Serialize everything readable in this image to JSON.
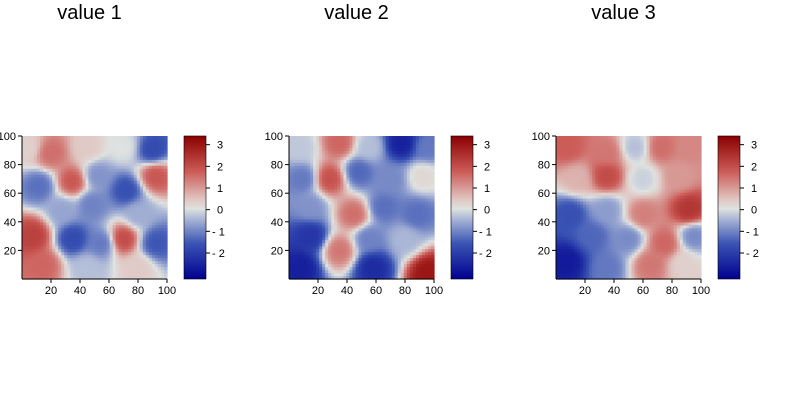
{
  "chart_data": [
    {
      "type": "heatmap",
      "title": "value 1",
      "xlabel": "",
      "ylabel": "",
      "xlim": [
        0,
        100
      ],
      "ylim": [
        0,
        100
      ],
      "x_ticks": [
        "20",
        "40",
        "60",
        "80",
        "100"
      ],
      "y_ticks": [
        "20",
        "40",
        "60",
        "80",
        "100"
      ],
      "colorbar": {
        "range": [
          -3.2,
          3.4
        ],
        "ticks": [
          "3",
          "2",
          "1",
          "0",
          "- 1",
          "- 2"
        ]
      },
      "grid": false,
      "hotspots": [
        {
          "x": 4,
          "y": 92,
          "value": 0.3
        },
        {
          "x": 20,
          "y": 88,
          "value": 1.5
        },
        {
          "x": 45,
          "y": 92,
          "value": 0.4
        },
        {
          "x": 70,
          "y": 92,
          "value": 0.0
        },
        {
          "x": 90,
          "y": 90,
          "value": -1.8
        },
        {
          "x": 12,
          "y": 65,
          "value": -1.3
        },
        {
          "x": 35,
          "y": 68,
          "value": 1.8
        },
        {
          "x": 52,
          "y": 72,
          "value": -0.9
        },
        {
          "x": 72,
          "y": 62,
          "value": -1.7
        },
        {
          "x": 92,
          "y": 72,
          "value": 1.8
        },
        {
          "x": 28,
          "y": 48,
          "value": -0.7
        },
        {
          "x": 48,
          "y": 52,
          "value": -1.1
        },
        {
          "x": 80,
          "y": 45,
          "value": -0.6
        },
        {
          "x": 8,
          "y": 30,
          "value": 2.2
        },
        {
          "x": 35,
          "y": 28,
          "value": -1.8
        },
        {
          "x": 55,
          "y": 25,
          "value": -1.2
        },
        {
          "x": 70,
          "y": 28,
          "value": 2.0
        },
        {
          "x": 92,
          "y": 25,
          "value": -1.6
        },
        {
          "x": 15,
          "y": 10,
          "value": 1.6
        },
        {
          "x": 45,
          "y": 8,
          "value": -0.4
        },
        {
          "x": 80,
          "y": 8,
          "value": 0.4
        }
      ]
    },
    {
      "type": "heatmap",
      "title": "value 2",
      "xlabel": "",
      "ylabel": "",
      "xlim": [
        0,
        100
      ],
      "ylim": [
        0,
        100
      ],
      "x_ticks": [
        "20",
        "40",
        "60",
        "80",
        "100"
      ],
      "y_ticks": [
        "20",
        "40",
        "60",
        "80",
        "100"
      ],
      "colorbar": {
        "range": [
          -3.2,
          3.4
        ],
        "ticks": [
          "3",
          "2",
          "1",
          "0",
          "- 1",
          "- 2"
        ]
      },
      "grid": false,
      "hotspots": [
        {
          "x": 8,
          "y": 92,
          "value": -0.3
        },
        {
          "x": 35,
          "y": 95,
          "value": 1.6
        },
        {
          "x": 55,
          "y": 92,
          "value": -0.4
        },
        {
          "x": 78,
          "y": 95,
          "value": -2.6
        },
        {
          "x": 95,
          "y": 92,
          "value": -1.2
        },
        {
          "x": 10,
          "y": 70,
          "value": -1.2
        },
        {
          "x": 28,
          "y": 70,
          "value": 1.9
        },
        {
          "x": 48,
          "y": 75,
          "value": -1.4
        },
        {
          "x": 70,
          "y": 70,
          "value": -1.0
        },
        {
          "x": 92,
          "y": 72,
          "value": 0.2
        },
        {
          "x": 15,
          "y": 50,
          "value": -0.9
        },
        {
          "x": 45,
          "y": 45,
          "value": 1.5
        },
        {
          "x": 65,
          "y": 50,
          "value": -1.3
        },
        {
          "x": 88,
          "y": 45,
          "value": -1.3
        },
        {
          "x": 15,
          "y": 30,
          "value": -2.2
        },
        {
          "x": 35,
          "y": 20,
          "value": 1.4
        },
        {
          "x": 55,
          "y": 28,
          "value": -1.1
        },
        {
          "x": 80,
          "y": 28,
          "value": -0.5
        },
        {
          "x": 8,
          "y": 8,
          "value": -2.6
        },
        {
          "x": 58,
          "y": 8,
          "value": -2.4
        },
        {
          "x": 96,
          "y": 4,
          "value": 3.0
        }
      ]
    },
    {
      "type": "heatmap",
      "title": "value 3",
      "xlabel": "",
      "ylabel": "",
      "xlim": [
        0,
        100
      ],
      "ylim": [
        0,
        100
      ],
      "x_ticks": [
        "20",
        "40",
        "60",
        "80",
        "100"
      ],
      "y_ticks": [
        "20",
        "40",
        "60",
        "80",
        "100"
      ],
      "colorbar": {
        "range": [
          -3.2,
          3.4
        ],
        "ticks": [
          "3",
          "2",
          "1",
          "0",
          "- 1",
          "- 2"
        ]
      },
      "grid": false,
      "hotspots": [
        {
          "x": 8,
          "y": 92,
          "value": 1.7
        },
        {
          "x": 35,
          "y": 88,
          "value": 1.4
        },
        {
          "x": 55,
          "y": 92,
          "value": -0.4
        },
        {
          "x": 72,
          "y": 92,
          "value": 1.5
        },
        {
          "x": 92,
          "y": 92,
          "value": 1.2
        },
        {
          "x": 15,
          "y": 70,
          "value": 0.7
        },
        {
          "x": 35,
          "y": 72,
          "value": 2.0
        },
        {
          "x": 60,
          "y": 70,
          "value": -0.2
        },
        {
          "x": 85,
          "y": 72,
          "value": 1.0
        },
        {
          "x": 10,
          "y": 45,
          "value": -1.7
        },
        {
          "x": 35,
          "y": 48,
          "value": -0.8
        },
        {
          "x": 60,
          "y": 45,
          "value": 1.3
        },
        {
          "x": 92,
          "y": 48,
          "value": 2.4
        },
        {
          "x": 25,
          "y": 30,
          "value": -1.4
        },
        {
          "x": 50,
          "y": 28,
          "value": -1.0
        },
        {
          "x": 75,
          "y": 25,
          "value": 1.6
        },
        {
          "x": 95,
          "y": 30,
          "value": -1.0
        },
        {
          "x": 8,
          "y": 12,
          "value": -2.7
        },
        {
          "x": 35,
          "y": 8,
          "value": -1.2
        },
        {
          "x": 65,
          "y": 10,
          "value": 1.4
        },
        {
          "x": 88,
          "y": 10,
          "value": 0.3
        }
      ]
    }
  ]
}
